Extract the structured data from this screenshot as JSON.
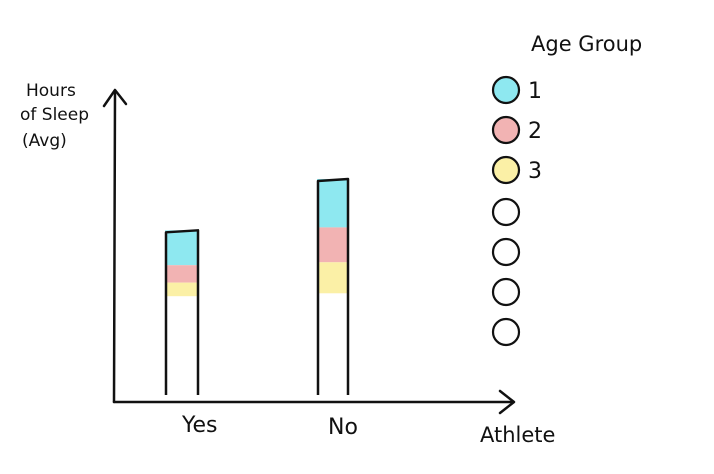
{
  "chart_data": {
    "type": "bar",
    "stacked": true,
    "ylabel_lines": [
      "Hours",
      "of Sleep",
      "(Avg)"
    ],
    "xlabel": "Athlete",
    "categories": [
      "Yes",
      "No"
    ],
    "legend_title": "Age Group",
    "legend_position": "right",
    "series": [
      {
        "name": "1",
        "color": "#8ee8f0",
        "values": [
          36,
          50
        ]
      },
      {
        "name": "2",
        "color": "#f2b3b3",
        "values": [
          18,
          36
        ]
      },
      {
        "name": "3",
        "color": "#fbf0a6",
        "values": [
          14,
          32
        ]
      }
    ],
    "empty_legend_slots": 4,
    "bar_outline_top": [
      170,
      223
    ],
    "ylim": [
      0,
      320
    ],
    "grid": false
  }
}
